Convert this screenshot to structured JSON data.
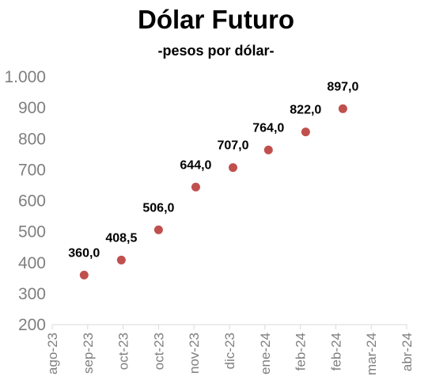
{
  "chart_data": {
    "type": "scatter",
    "title": "Dólar Futuro",
    "subtitle": "-pesos por dólar-",
    "xlabel": "",
    "ylabel": "",
    "ylim": [
      200,
      1000
    ],
    "yticks": [
      "200",
      "300",
      "400",
      "500",
      "600",
      "700",
      "800",
      "900",
      "1.000"
    ],
    "x_categories": [
      "ago-23",
      "sep-23",
      "oct-23",
      "oct-23",
      "nov-23",
      "dic-23",
      "ene-24",
      "feb-24",
      "feb-24",
      "mar-24",
      "abr-24"
    ],
    "grid": false,
    "legend": "none",
    "marker_color": "#c0504d",
    "points": [
      {
        "x": 0.9,
        "y": 360.0,
        "label": "360,0"
      },
      {
        "x": 1.95,
        "y": 408.5,
        "label": "408,5"
      },
      {
        "x": 3.0,
        "y": 506.0,
        "label": "506,0"
      },
      {
        "x": 4.05,
        "y": 644.0,
        "label": "644,0"
      },
      {
        "x": 5.1,
        "y": 707.0,
        "label": "707,0"
      },
      {
        "x": 6.1,
        "y": 764.0,
        "label": "764,0"
      },
      {
        "x": 7.15,
        "y": 822.0,
        "label": "822,0"
      },
      {
        "x": 8.2,
        "y": 897.0,
        "label": "897,0"
      }
    ]
  }
}
